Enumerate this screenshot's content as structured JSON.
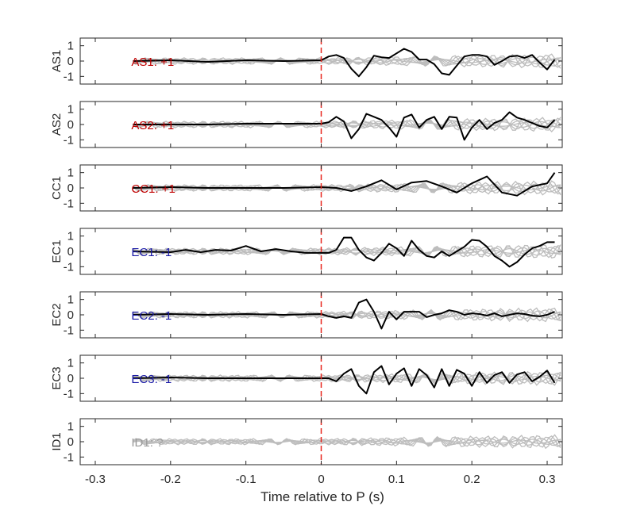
{
  "chart_data": {
    "type": "line",
    "xlabel": "Time relative to P (s)",
    "xlim": [
      -0.32,
      0.32
    ],
    "ylim": [
      -1.5,
      1.5
    ],
    "xticks": [
      "-0.3",
      "-0.2",
      "-0.1",
      "0",
      "0.1",
      "0.2",
      "0.3"
    ],
    "xtick_values": [
      -0.3,
      -0.2,
      -0.1,
      0,
      0.1,
      0.2,
      0.3
    ],
    "yticks": [
      "1",
      "0",
      "-1"
    ],
    "ytick_values": [
      1,
      0,
      -1
    ],
    "marker": {
      "x": 0,
      "color": "#e8261e",
      "style": "dashed"
    },
    "panels": [
      {
        "ylabel": "AS1",
        "annotation": "AS1: +1",
        "annotation_color": "#c00000",
        "x": [
          -0.25,
          -0.2,
          -0.15,
          -0.1,
          -0.05,
          0,
          0.01,
          0.02,
          0.03,
          0.04,
          0.05,
          0.06,
          0.07,
          0.08,
          0.09,
          0.1,
          0.11,
          0.12,
          0.13,
          0.14,
          0.15,
          0.16,
          0.17,
          0.18,
          0.19,
          0.2,
          0.21,
          0.22,
          0.23,
          0.24,
          0.25,
          0.26,
          0.27,
          0.28,
          0.29,
          0.3,
          0.31
        ],
        "y": [
          0,
          0.05,
          -0.05,
          0.05,
          0,
          0.05,
          0.3,
          0.4,
          0.2,
          -0.5,
          -1,
          -0.4,
          0.35,
          0.25,
          0.2,
          0.5,
          0.8,
          0.6,
          0.1,
          0.1,
          -0.2,
          -0.8,
          -0.9,
          -0.3,
          0.3,
          0.4,
          0.4,
          0.3,
          -0.25,
          0,
          0.3,
          0.35,
          0.2,
          0.4,
          -0.1,
          -0.55,
          0.1
        ],
        "grey_traces": 6
      },
      {
        "ylabel": "AS2",
        "annotation": "AS2: +1",
        "annotation_color": "#c00000",
        "x": [
          -0.25,
          -0.2,
          -0.15,
          -0.1,
          -0.05,
          0,
          0.01,
          0.02,
          0.03,
          0.04,
          0.05,
          0.06,
          0.07,
          0.08,
          0.09,
          0.1,
          0.11,
          0.12,
          0.13,
          0.14,
          0.15,
          0.16,
          0.17,
          0.18,
          0.19,
          0.2,
          0.21,
          0.22,
          0.23,
          0.24,
          0.25,
          0.26,
          0.27,
          0.28,
          0.29,
          0.3,
          0.31
        ],
        "y": [
          0,
          0,
          0,
          0.05,
          0.05,
          0.05,
          0.15,
          0.5,
          0.2,
          -0.9,
          -0.3,
          0.7,
          0.5,
          0.3,
          -0.2,
          -0.8,
          0.45,
          0.65,
          -0.2,
          0.3,
          0.5,
          -0.3,
          0.5,
          0.45,
          -1,
          -0.2,
          0.3,
          -0.3,
          0.1,
          0.3,
          0.8,
          0.45,
          0.3,
          0.1,
          -0.1,
          -0.2,
          0.3
        ],
        "grey_traces": 6
      },
      {
        "ylabel": "CC1",
        "annotation": "CC1: +1",
        "annotation_color": "#c00000",
        "x": [
          -0.25,
          -0.2,
          -0.15,
          -0.1,
          -0.05,
          0,
          0.02,
          0.04,
          0.06,
          0.08,
          0.1,
          0.12,
          0.14,
          0.16,
          0.18,
          0.2,
          0.22,
          0.24,
          0.26,
          0.28,
          0.3,
          0.31
        ],
        "y": [
          0,
          0.05,
          0,
          0,
          0,
          0.05,
          0,
          -0.2,
          0.1,
          0.5,
          -0.1,
          0.35,
          0.45,
          0.1,
          -0.3,
          0.3,
          0.75,
          -0.3,
          -0.5,
          0.1,
          0.3,
          1
        ],
        "grey_traces": 6
      },
      {
        "ylabel": "EC1",
        "annotation": "EC1: -1",
        "annotation_color": "#1a1aa6",
        "x": [
          -0.25,
          -0.2,
          -0.18,
          -0.16,
          -0.14,
          -0.12,
          -0.1,
          -0.08,
          -0.06,
          -0.04,
          -0.02,
          0,
          0.01,
          0.02,
          0.03,
          0.04,
          0.05,
          0.06,
          0.07,
          0.08,
          0.09,
          0.1,
          0.11,
          0.12,
          0.13,
          0.14,
          0.15,
          0.16,
          0.17,
          0.18,
          0.19,
          0.2,
          0.21,
          0.22,
          0.23,
          0.24,
          0.25,
          0.26,
          0.27,
          0.28,
          0.29,
          0.3,
          0.31
        ],
        "y": [
          0,
          -0.05,
          0.1,
          -0.05,
          0.1,
          0.05,
          0.35,
          0,
          0.15,
          0,
          -0.1,
          -0.1,
          -0.1,
          0.1,
          0.9,
          0.9,
          0.1,
          -0.4,
          -0.6,
          -0.1,
          0.5,
          0.2,
          -0.3,
          0.7,
          0.1,
          -0.3,
          -0.4,
          0,
          -0.3,
          0,
          0.3,
          0.75,
          0.7,
          0.3,
          -0.3,
          -0.6,
          -1,
          -0.7,
          -0.2,
          0.2,
          0.35,
          0.6,
          0.6
        ],
        "grey_traces": 6
      },
      {
        "ylabel": "EC2",
        "annotation": "EC2: -1",
        "annotation_color": "#1a1aa6",
        "x": [
          -0.25,
          -0.2,
          -0.15,
          -0.1,
          -0.05,
          0,
          0.01,
          0.02,
          0.03,
          0.04,
          0.05,
          0.06,
          0.07,
          0.08,
          0.09,
          0.1,
          0.11,
          0.12,
          0.13,
          0.14,
          0.15,
          0.16,
          0.17,
          0.18,
          0.19,
          0.2,
          0.21,
          0.22,
          0.23,
          0.24,
          0.25,
          0.26,
          0.27,
          0.28,
          0.29,
          0.3,
          0.31
        ],
        "y": [
          0,
          0.05,
          0,
          0.05,
          0,
          0.05,
          -0.1,
          -0.2,
          -0.1,
          -0.2,
          0.8,
          1,
          0.2,
          -0.9,
          0.2,
          -0.3,
          0.2,
          0.2,
          0.2,
          -0.15,
          0,
          0.1,
          0.3,
          0.2,
          0,
          0.1,
          0.05,
          -0.05,
          0.1,
          -0.1,
          0,
          0.1,
          0.05,
          -0.05,
          -0.1,
          0,
          0.2
        ],
        "grey_traces": 6
      },
      {
        "ylabel": "EC3",
        "annotation": "EC3: -1",
        "annotation_color": "#1a1aa6",
        "x": [
          -0.25,
          -0.2,
          -0.15,
          -0.1,
          -0.05,
          0,
          0.01,
          0.02,
          0.03,
          0.04,
          0.05,
          0.06,
          0.07,
          0.08,
          0.09,
          0.1,
          0.11,
          0.12,
          0.13,
          0.14,
          0.15,
          0.16,
          0.17,
          0.18,
          0.19,
          0.2,
          0.21,
          0.22,
          0.23,
          0.24,
          0.25,
          0.26,
          0.27,
          0.28,
          0.29,
          0.3,
          0.31
        ],
        "y": [
          0,
          0.05,
          0,
          0,
          0,
          0,
          0,
          -0.2,
          0.3,
          0.6,
          -0.5,
          -1,
          0.4,
          0.8,
          -0.4,
          0.3,
          0.65,
          -0.5,
          0.6,
          0.2,
          -0.6,
          0.6,
          -0.5,
          0.55,
          0.3,
          -0.5,
          0.4,
          -0.3,
          0.2,
          0.4,
          -0.3,
          0.25,
          0.4,
          -0.2,
          0.1,
          0.5,
          -0.3
        ],
        "grey_traces": 6
      },
      {
        "ylabel": "ID1",
        "annotation": "ID1: ?",
        "annotation_color": "#9a9a9a",
        "x": [],
        "y": [],
        "grey_traces": 6
      }
    ]
  }
}
